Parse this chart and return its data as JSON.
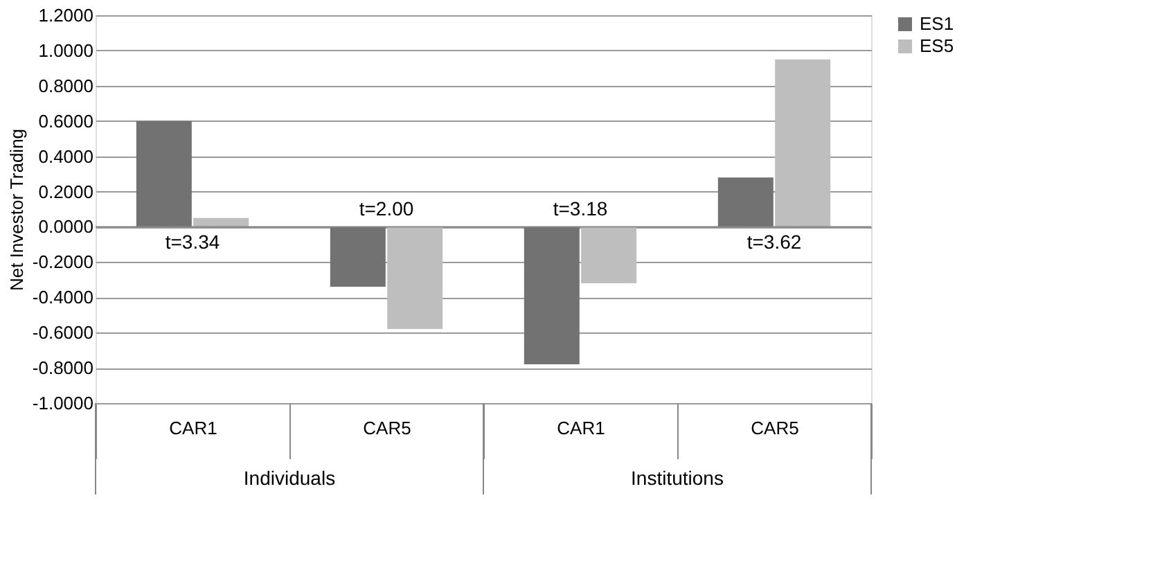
{
  "chart_data": {
    "type": "bar",
    "ylabel": "Net Investor Trading",
    "categories": [
      "CAR1",
      "CAR5",
      "CAR1",
      "CAR5"
    ],
    "series": [
      {
        "name": "ES1",
        "color": "#727272",
        "values": [
          0.6,
          -0.34,
          -0.78,
          0.28
        ]
      },
      {
        "name": "ES5",
        "color": "#bebebe",
        "values": [
          0.05,
          -0.58,
          -0.32,
          0.95
        ]
      }
    ],
    "ylim": [
      -1.0,
      1.2
    ],
    "yticks": [
      {
        "value": -1.0,
        "label": "-1.0000"
      },
      {
        "value": -0.8,
        "label": "-0.8000"
      },
      {
        "value": -0.6,
        "label": "-0.6000"
      },
      {
        "value": -0.4,
        "label": "-0.4000"
      },
      {
        "value": -0.2,
        "label": "-0.2000"
      },
      {
        "value": 0,
        "label": "0.0000"
      },
      {
        "value": 0.2,
        "label": "0.2000"
      },
      {
        "value": 0.4,
        "label": "0.4000"
      },
      {
        "value": 0.6,
        "label": "0.6000"
      },
      {
        "value": 0.8,
        "label": "0.8000"
      },
      {
        "value": 1.0,
        "label": "1.0000"
      },
      {
        "value": 1.2,
        "label": "1.2000"
      }
    ],
    "annotations": [
      "t=3.34",
      "t=2.00",
      "t=3.18",
      "t=3.62",
      "Individuals",
      "Institutions"
    ],
    "grid": "y",
    "legend": "right"
  }
}
